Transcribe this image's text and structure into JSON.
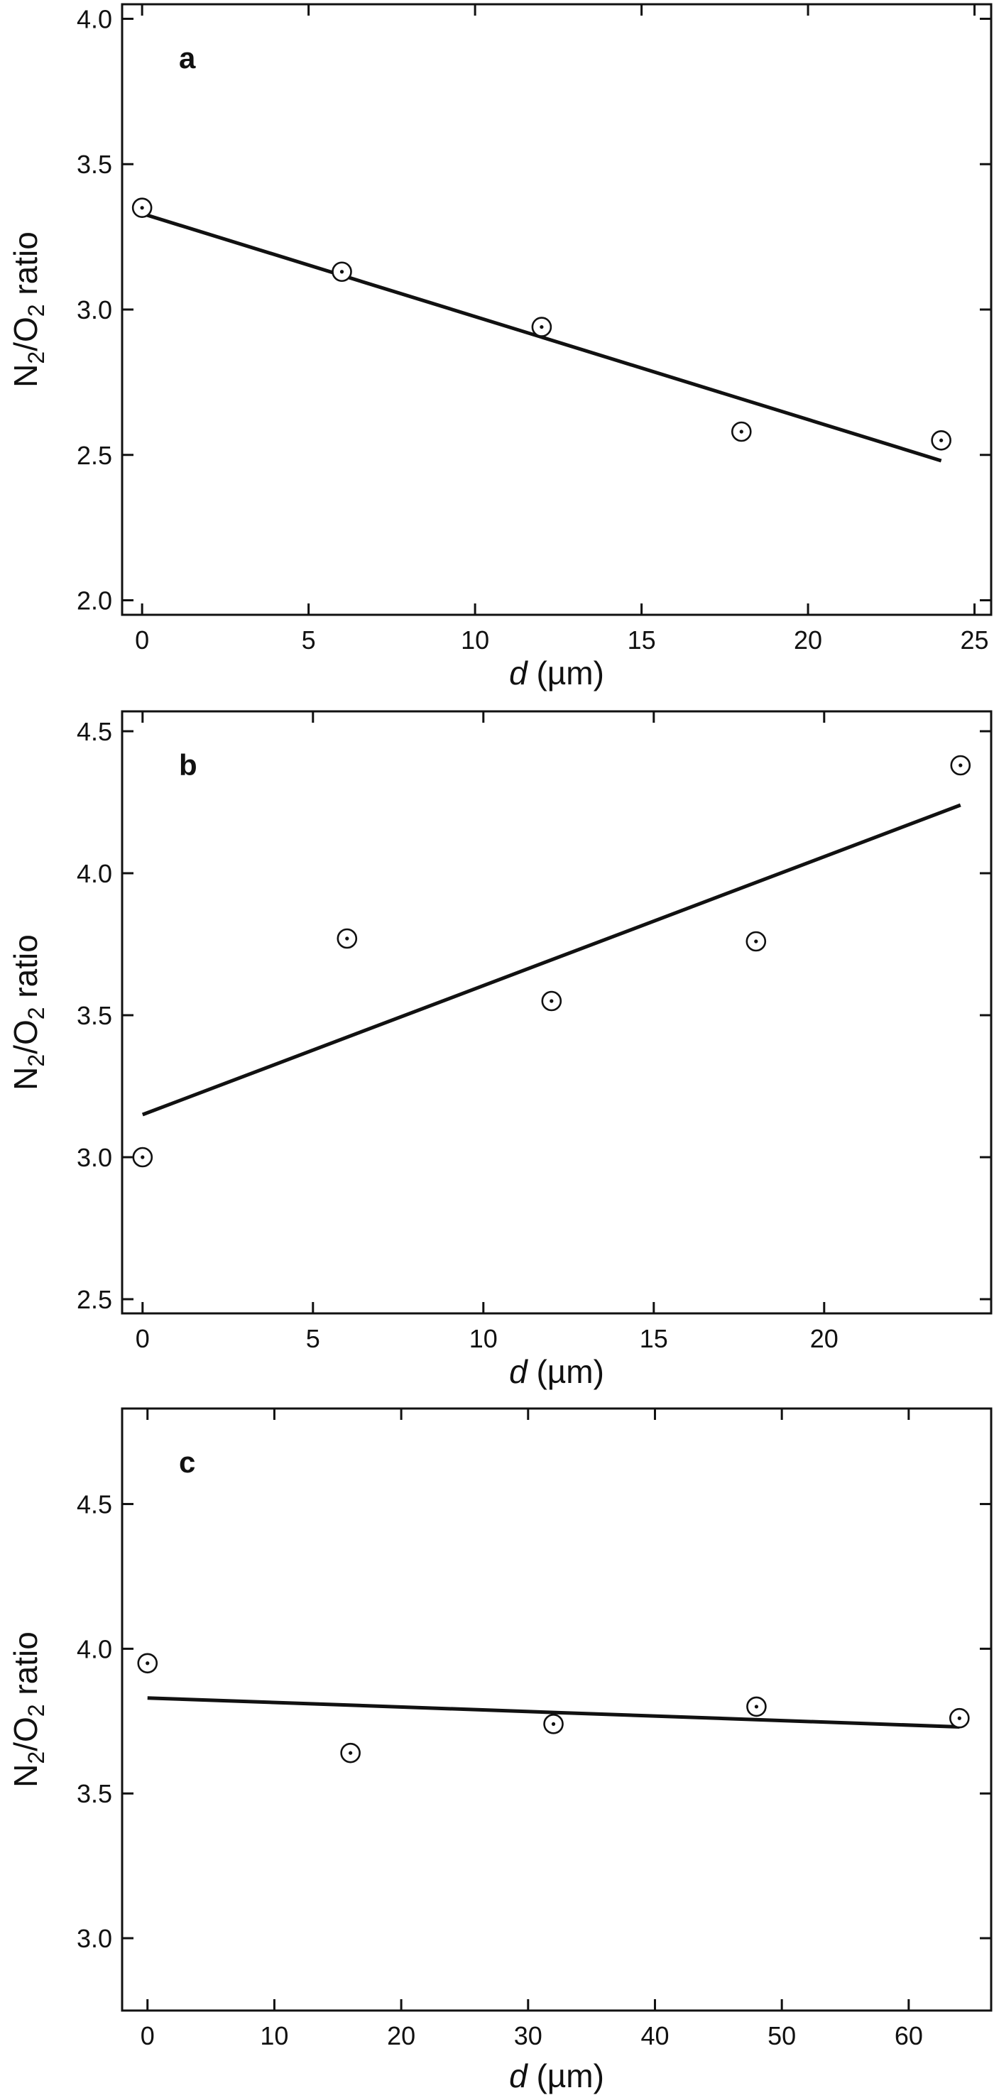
{
  "chart_data": [
    {
      "type": "scatter",
      "panel": "a",
      "xlabel_italic": "d",
      "xlabel_unit": " (µm)",
      "ylabel": "N2/O2 ratio",
      "xlim": [
        -0.6,
        25.5
      ],
      "ylim": [
        1.95,
        4.05
      ],
      "xticks": [
        0,
        5,
        10,
        15,
        20,
        25
      ],
      "xtick_labels": [
        "0",
        "5",
        "10",
        "15",
        "20",
        "25"
      ],
      "yticks": [
        2.0,
        2.5,
        3.0,
        3.5,
        4.0
      ],
      "ytick_labels": [
        "2.0",
        "2.5",
        "3.0",
        "3.5",
        "4.0"
      ],
      "points": {
        "x": [
          0,
          6,
          12,
          18,
          24
        ],
        "y": [
          3.35,
          3.13,
          2.94,
          2.58,
          2.55
        ]
      },
      "fit_line": {
        "x": [
          0,
          24
        ],
        "y": [
          3.33,
          2.48
        ]
      },
      "grid": false
    },
    {
      "type": "scatter",
      "panel": "b",
      "xlabel_italic": "d",
      "xlabel_unit": " (µm)",
      "ylabel": "N2/O2 ratio",
      "xlim": [
        -0.6,
        24.9
      ],
      "ylim": [
        2.45,
        4.57
      ],
      "xticks": [
        0,
        5,
        10,
        15,
        20
      ],
      "xtick_labels": [
        "0",
        "5",
        "10",
        "15",
        "20"
      ],
      "yticks": [
        2.5,
        3.0,
        3.5,
        4.0,
        4.5
      ],
      "ytick_labels": [
        "2.5",
        "3.0",
        "3.5",
        "4.0",
        "4.5"
      ],
      "points": {
        "x": [
          0,
          6,
          12,
          18,
          24
        ],
        "y": [
          3.0,
          3.77,
          3.55,
          3.76,
          4.38
        ]
      },
      "fit_line": {
        "x": [
          0,
          24
        ],
        "y": [
          3.15,
          4.24
        ]
      },
      "grid": false
    },
    {
      "type": "scatter",
      "panel": "c",
      "xlabel_italic": "d",
      "xlabel_unit": " (µm)",
      "ylabel": "N2/O2 ratio",
      "xlim": [
        -2,
        66.5
      ],
      "ylim": [
        2.75,
        4.83
      ],
      "xticks": [
        0,
        10,
        20,
        30,
        40,
        50,
        60
      ],
      "xtick_labels": [
        "0",
        "10",
        "20",
        "30",
        "40",
        "50",
        "60"
      ],
      "yticks": [
        3.0,
        3.5,
        4.0,
        4.5
      ],
      "ytick_labels": [
        "3.0",
        "3.5",
        "4.0",
        "4.5"
      ],
      "points": {
        "x": [
          0,
          16,
          32,
          48,
          64
        ],
        "y": [
          3.95,
          3.64,
          3.74,
          3.8,
          3.76
        ]
      },
      "fit_line": {
        "x": [
          0,
          64
        ],
        "y": [
          3.83,
          3.73
        ]
      },
      "grid": false
    }
  ]
}
